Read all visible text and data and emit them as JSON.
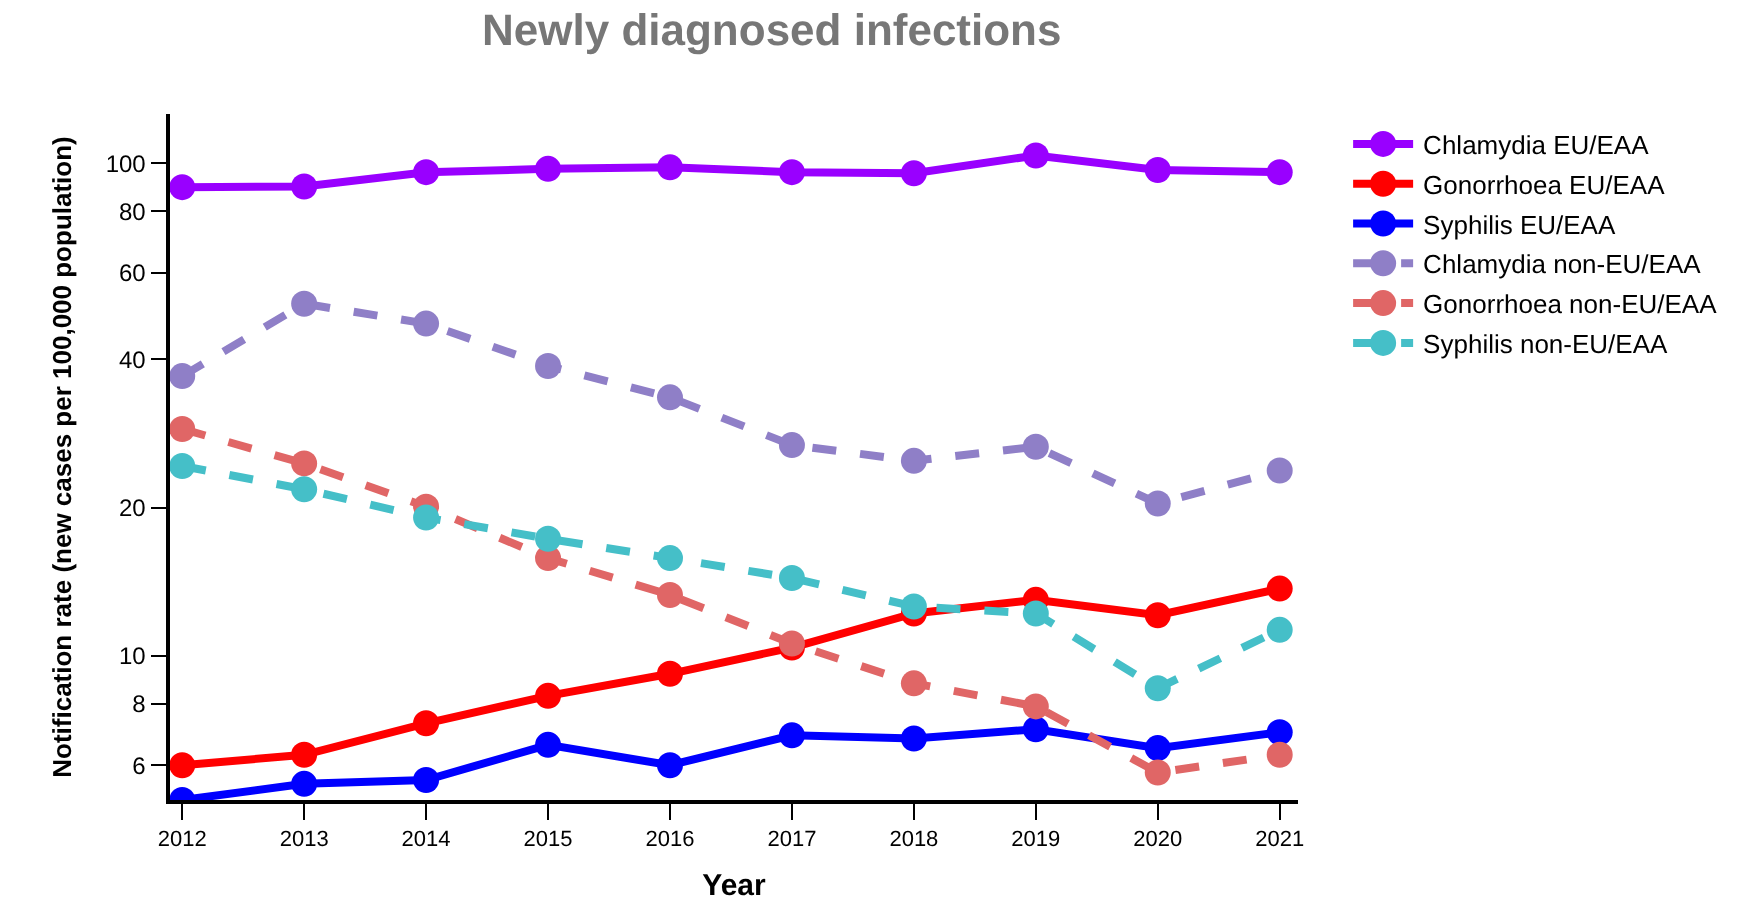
{
  "chart_data": {
    "type": "line",
    "title": "Newly diagnosed infections",
    "xlabel": "Year",
    "ylabel": "Notification rate (new cases per 100,000 population)",
    "x": [
      2012,
      2013,
      2014,
      2015,
      2016,
      2017,
      2018,
      2019,
      2020,
      2021
    ],
    "series": [
      {
        "name": "Chlamydia EU/EAA",
        "color": "#9900ff",
        "line_style": "solid",
        "values": [
          89.5,
          89.8,
          96,
          97.5,
          98.2,
          96,
          95.5,
          103.8,
          97,
          96
        ]
      },
      {
        "name": "Gonorrhoea EU/EAA",
        "color": "#ff0000",
        "line_style": "solid",
        "values": [
          6.0,
          6.3,
          7.3,
          8.3,
          9.2,
          10.4,
          12.2,
          13.0,
          12.1,
          13.7
        ]
      },
      {
        "name": "Syphilis EU/EAA",
        "color": "#0000ff",
        "line_style": "solid",
        "values": [
          5.1,
          5.5,
          5.6,
          6.6,
          6.0,
          6.9,
          6.8,
          7.1,
          6.5,
          7.0
        ]
      },
      {
        "name": "Chlamydia non-EU/EAA",
        "color": "#8f7fc7",
        "line_style": "dashed",
        "values": [
          37,
          51.9,
          47.3,
          38.8,
          33.5,
          26.8,
          24.9,
          26.6,
          20.4,
          23.8
        ]
      },
      {
        "name": "Gonorrhoea non-EU/EAA",
        "color": "#e06666",
        "line_style": "dashed",
        "values": [
          28.9,
          24.6,
          20.1,
          15.8,
          13.3,
          10.6,
          8.8,
          7.9,
          5.8,
          6.3
        ]
      },
      {
        "name": "Syphilis non-EU/EAA",
        "color": "#45bfc8",
        "line_style": "dashed",
        "values": [
          24.3,
          21.8,
          19.1,
          17.3,
          15.8,
          14.4,
          12.6,
          12.2,
          8.6,
          11.3
        ]
      }
    ],
    "log": "y",
    "xlim": [
      2011.9,
      2021.15
    ],
    "xticks": [
      2012,
      2013,
      2014,
      2015,
      2016,
      2017,
      2018,
      2019,
      2020,
      2021
    ],
    "ylim": [
      5.1,
      126
    ],
    "yticks": [
      6,
      8,
      10,
      20,
      40,
      60,
      80,
      100
    ],
    "grid": false,
    "legend": "top right",
    "marker": "circle"
  }
}
